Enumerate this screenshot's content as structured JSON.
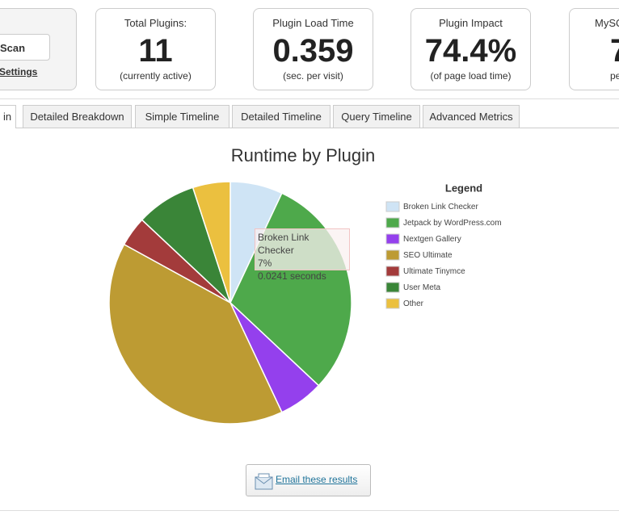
{
  "scan_panel": {
    "button": "Scan",
    "link": "Settings"
  },
  "cards": [
    {
      "title": "Total Plugins:",
      "value": "11",
      "note": "(currently active)"
    },
    {
      "title": "Plugin Load Time",
      "value": "0.359",
      "note": "(sec. per visit)"
    },
    {
      "title": "Plugin Impact",
      "value": "74.4%",
      "note": "(of page load time)"
    },
    {
      "title": "MySQ",
      "value": "7",
      "note": "pe"
    }
  ],
  "tabs": [
    "in",
    "Detailed Breakdown",
    "Simple Timeline",
    "Detailed Timeline",
    "Query Timeline",
    "Advanced Metrics"
  ],
  "chart_data": {
    "type": "pie",
    "title": "Runtime by Plugin",
    "legend_title": "Legend",
    "legend_position": "right",
    "categories": [
      "Broken Link Checker",
      "Jetpack by WordPress.com",
      "Nextgen Gallery",
      "SEO Ultimate",
      "Ultimate Tinymce",
      "User Meta",
      "Other"
    ],
    "values": [
      7,
      30,
      6,
      40,
      4,
      8,
      5
    ],
    "colors": [
      "#cfe4f5",
      "#4ea94b",
      "#9440ed",
      "#bd9b33",
      "#a33b3b",
      "#3a8538",
      "#ebc03f"
    ]
  },
  "tooltip": {
    "name": "Broken Link Checker",
    "percent": "7%",
    "time": "0.0241 seconds"
  },
  "email_link": "Email these results"
}
